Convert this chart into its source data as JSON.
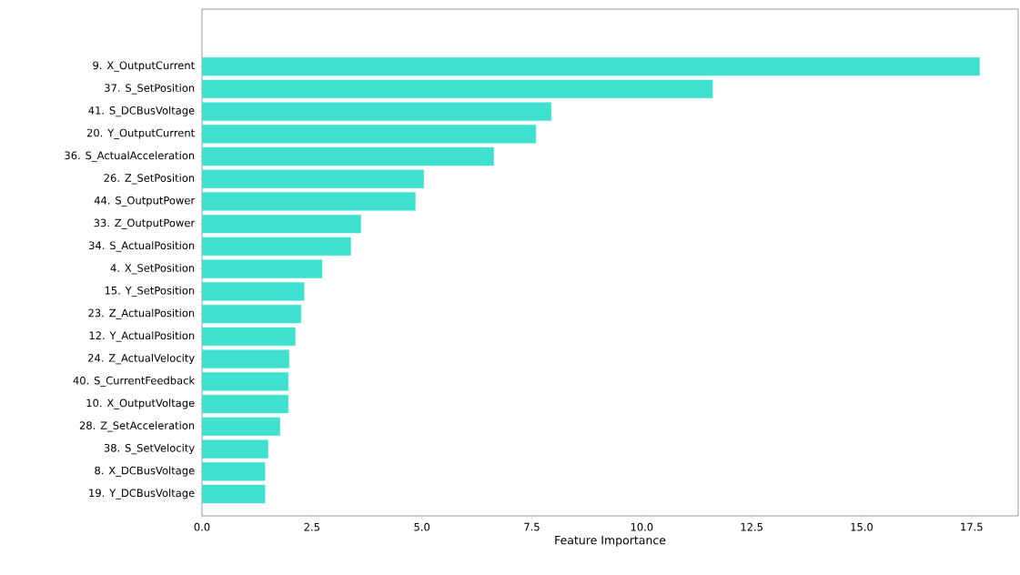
{
  "chart_data": {
    "type": "bar",
    "orientation": "horizontal",
    "xlabel": "Feature Importance",
    "categories": [
      "9. X_OutputCurrent",
      "37. S_SetPosition",
      "41. S_DCBusVoltage",
      "20. Y_OutputCurrent",
      "36. S_ActualAcceleration",
      "26. Z_SetPosition",
      "44. S_OutputPower",
      "33. Z_OutputPower",
      "34. S_ActualPosition",
      "4. X_SetPosition",
      "15. Y_SetPosition",
      "23. Z_ActualPosition",
      "12. Y_ActualPosition",
      "24. Z_ActualVelocity",
      "40. S_CurrentFeedback",
      "10. X_OutputVoltage",
      "28. Z_SetAcceleration",
      "38. S_SetVelocity",
      "8. X_DCBusVoltage",
      "19. Y_DCBusVoltage"
    ],
    "values": [
      17.68,
      11.61,
      7.94,
      7.59,
      6.63,
      5.04,
      4.85,
      3.61,
      3.38,
      2.73,
      2.32,
      2.25,
      2.12,
      1.98,
      1.96,
      1.96,
      1.77,
      1.5,
      1.43,
      1.43
    ],
    "color": "#40e0d0",
    "xlim": [
      0,
      18.56
    ],
    "xticks": [
      {
        "value": 0,
        "label": "0.0"
      },
      {
        "value": 2.5,
        "label": "2.5"
      },
      {
        "value": 5,
        "label": "5.0"
      },
      {
        "value": 7.5,
        "label": "7.5"
      },
      {
        "value": 10,
        "label": "10.0"
      },
      {
        "value": 12.5,
        "label": "12.5"
      },
      {
        "value": 15,
        "label": "15.0"
      },
      {
        "value": 17.5,
        "label": "17.5"
      }
    ]
  }
}
